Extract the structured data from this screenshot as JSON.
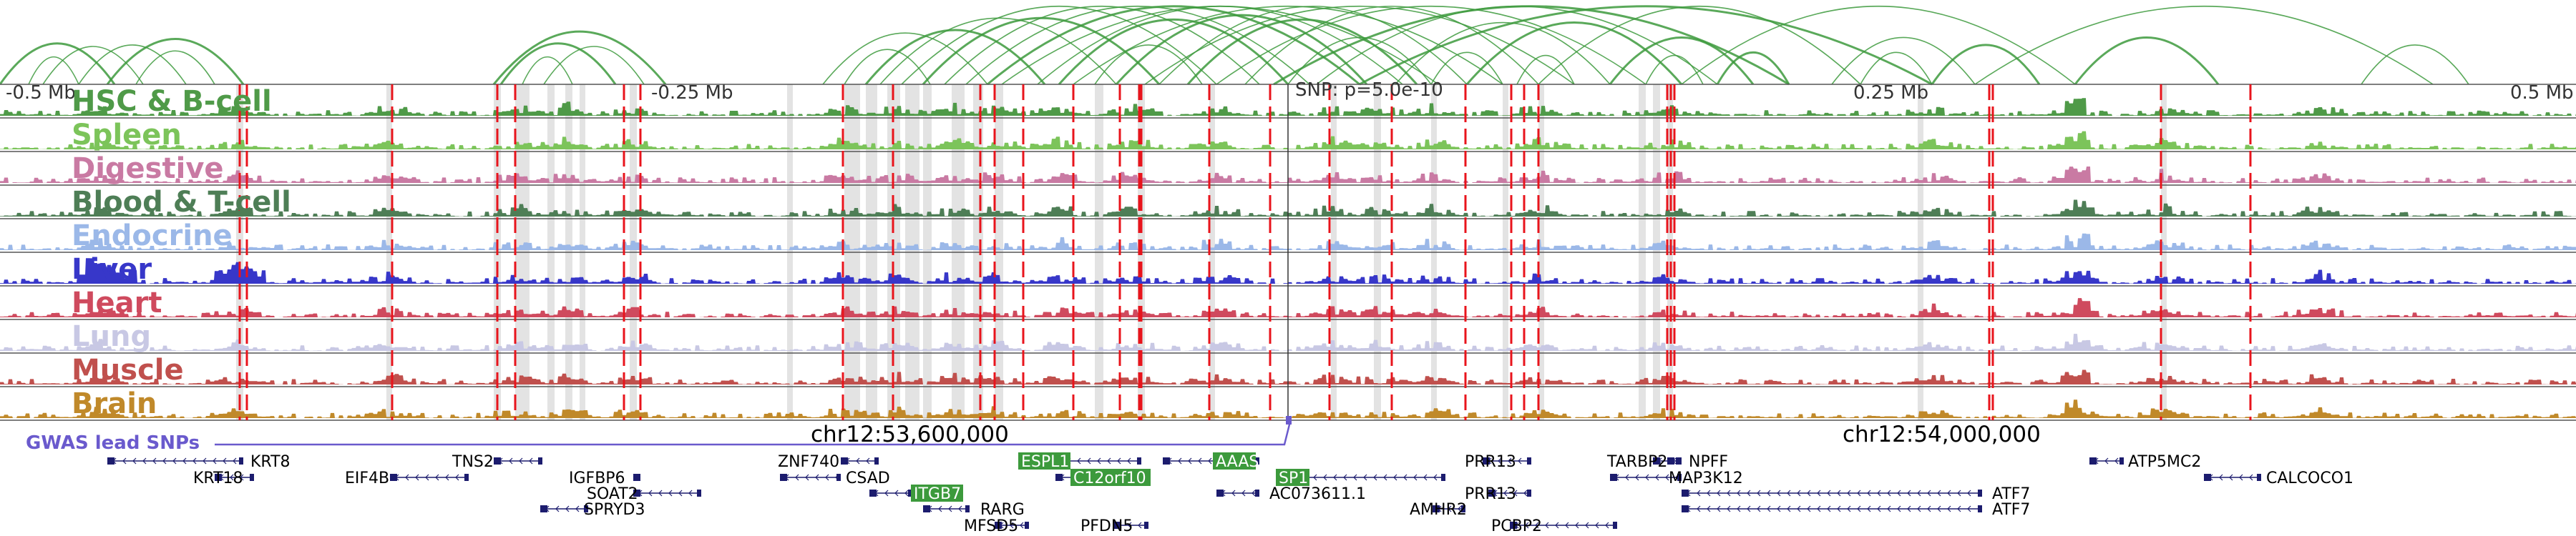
{
  "scale": {
    "left_edge": "-0.5 Mb",
    "left_mid": "-0.25 Mb",
    "snp": "SNP: p=5.0e-10",
    "right_mid": "0.25 Mb",
    "right_edge": "0.5 Mb"
  },
  "coords": [
    "chr12:53,600,000",
    "chr12:54,000,000"
  ],
  "gwas": {
    "label": "GWAS lead SNPs",
    "color": "#6a5acd"
  },
  "tracks": [
    {
      "name": "HSC & B-cell",
      "color": "#4f9a48"
    },
    {
      "name": "Spleen",
      "color": "#7cc45a"
    },
    {
      "name": "Digestive",
      "color": "#c97aa3"
    },
    {
      "name": "Blood & T-cell",
      "color": "#4e7e56"
    },
    {
      "name": "Endocrine",
      "color": "#9bb8e8"
    },
    {
      "name": "Liver",
      "color": "#3737c9"
    },
    {
      "name": "Heart",
      "color": "#cf4a5e"
    },
    {
      "name": "Lung",
      "color": "#c8c8e4"
    },
    {
      "name": "Muscle",
      "color": "#c0504d"
    },
    {
      "name": "Brain",
      "color": "#c0892a"
    }
  ],
  "genes": [
    {
      "name": "KRT8"
    },
    {
      "name": "KRT18"
    },
    {
      "name": "EIF4B"
    },
    {
      "name": "TNS2"
    },
    {
      "name": "IGFBP6"
    },
    {
      "name": "SOAT2"
    },
    {
      "name": "SPRYD3"
    },
    {
      "name": "ZNF740"
    },
    {
      "name": "CSAD"
    },
    {
      "name": "ITGB7",
      "highlight": true
    },
    {
      "name": "RARG"
    },
    {
      "name": "MFSD5"
    },
    {
      "name": "ESPL1",
      "highlight": true
    },
    {
      "name": "C12orf10",
      "highlight": true
    },
    {
      "name": "PFDN5"
    },
    {
      "name": "AAAS",
      "highlight": true
    },
    {
      "name": "AC073611.1"
    },
    {
      "name": "SP1",
      "highlight": true
    },
    {
      "name": "PRR13"
    },
    {
      "name": "PRR13"
    },
    {
      "name": "AMHR2"
    },
    {
      "name": "PCBP2"
    },
    {
      "name": "TARBP2"
    },
    {
      "name": "NPFF"
    },
    {
      "name": "MAP3K12"
    },
    {
      "name": "ATF7"
    },
    {
      "name": "ATF7"
    },
    {
      "name": "ATP5MC2"
    },
    {
      "name": "CALCOCO1"
    }
  ],
  "colors": {
    "loop": "#3d9a3d",
    "snp_line": "#e8141c",
    "highlight_band": "#d9d9d9",
    "gene_body": "#1c1c6e",
    "gene_highlight": "#3c9a3c"
  }
}
